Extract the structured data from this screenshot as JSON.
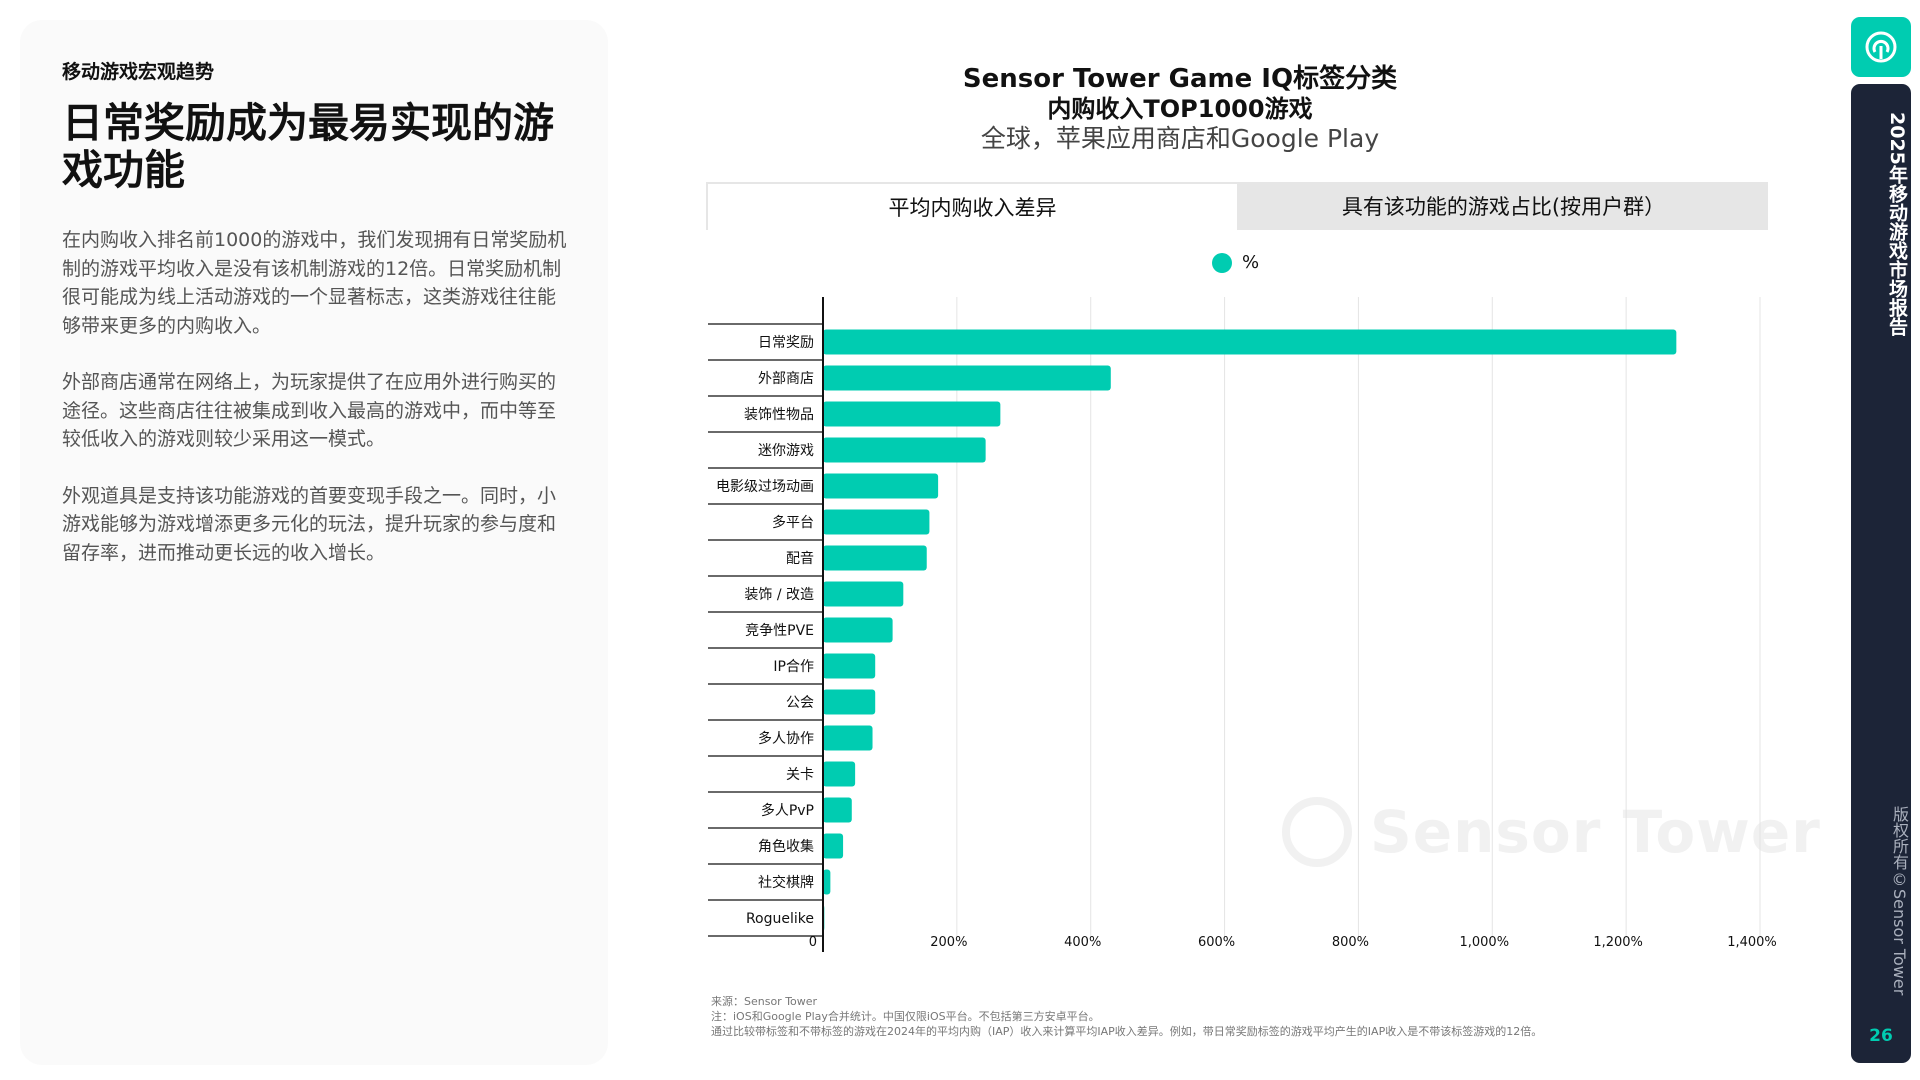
{
  "section": "移动游戏宏观趋势",
  "headline": "日常奖励成为最易实现的游戏功能",
  "paragraphs": [
    "在内购收入排名前1000的游戏中，我们发现拥有日常奖励机制的游戏平均收入是没有该机制游戏的12倍。日常奖励机制很可能成为线上活动游戏的一个显著标志，这类游戏往往能够带来更多的内购收入。",
    "外部商店通常在网络上，为玩家提供了在应用外进行购买的途径。这些商店往往被集成到收入最高的游戏中，而中等至较低收入的游戏则较少采用这一模式。",
    "外观道具是支持该功能游戏的首要变现手段之一。同时，小游戏能够为游戏增添更多元化的玩法，提升玩家的参与度和留存率，进而推动更长远的收入增长。"
  ],
  "chart_header": {
    "title_line1": "Sensor Tower Game IQ标签分类",
    "title_line2": "内购收入TOP1000游戏",
    "subtitle": "全球，苹果应用商店和Google Play"
  },
  "tabs": {
    "tab1": "平均内购收入差异",
    "tab2": "具有该功能的游戏占比(按用户群）"
  },
  "colors": {
    "accent": "#00ccb1",
    "sidebar": "#1c2437",
    "gridline": "#e4e4e4",
    "axis": "#111111"
  },
  "chart_data": {
    "type": "bar",
    "orientation": "horizontal",
    "legend": [
      "%"
    ],
    "categories": [
      "日常奖励",
      "外部商店",
      "装饰性物品",
      "迷你游戏",
      "电影级过场动画",
      "多平台",
      "配音",
      "装饰 / 改造",
      "竞争性PVE",
      "IP合作",
      "公会",
      "多人协作",
      "关卡",
      "多人PvP",
      "角色收集",
      "社交棋牌",
      "Roguelike"
    ],
    "values": [
      1275,
      430,
      265,
      243,
      172,
      159,
      155,
      120,
      104,
      78,
      78,
      74,
      48,
      43,
      30,
      11,
      2
    ],
    "xlim": [
      0,
      1400
    ],
    "xticks": [
      0,
      200,
      400,
      600,
      800,
      1000,
      1200,
      1400
    ],
    "xtick_labels": [
      "0",
      "200%",
      "400%",
      "600%",
      "800%",
      "1,000%",
      "1,200%",
      "1,400%"
    ],
    "grid": true
  },
  "watermark": "Sensor Tower",
  "notes": {
    "source": "来源：Sensor Tower",
    "note1": "注：iOS和Google Play合并统计。中国仅限iOS平台。不包括第三方安卓平台。",
    "note2": "通过比较带标签和不带标签的游戏在2024年的平均内购（IAP）收入来计算平均IAP收入差异。例如，带日常奖励标签的游戏平均产生的IAP收入是不带该标签游戏的12倍。"
  },
  "sidebar": {
    "report_title": "2025年移动游戏市场报告",
    "copyright": "版权所有©Sensor Tower",
    "page_number": "26",
    "logo_icon": "sensor-tower-logo-icon"
  }
}
